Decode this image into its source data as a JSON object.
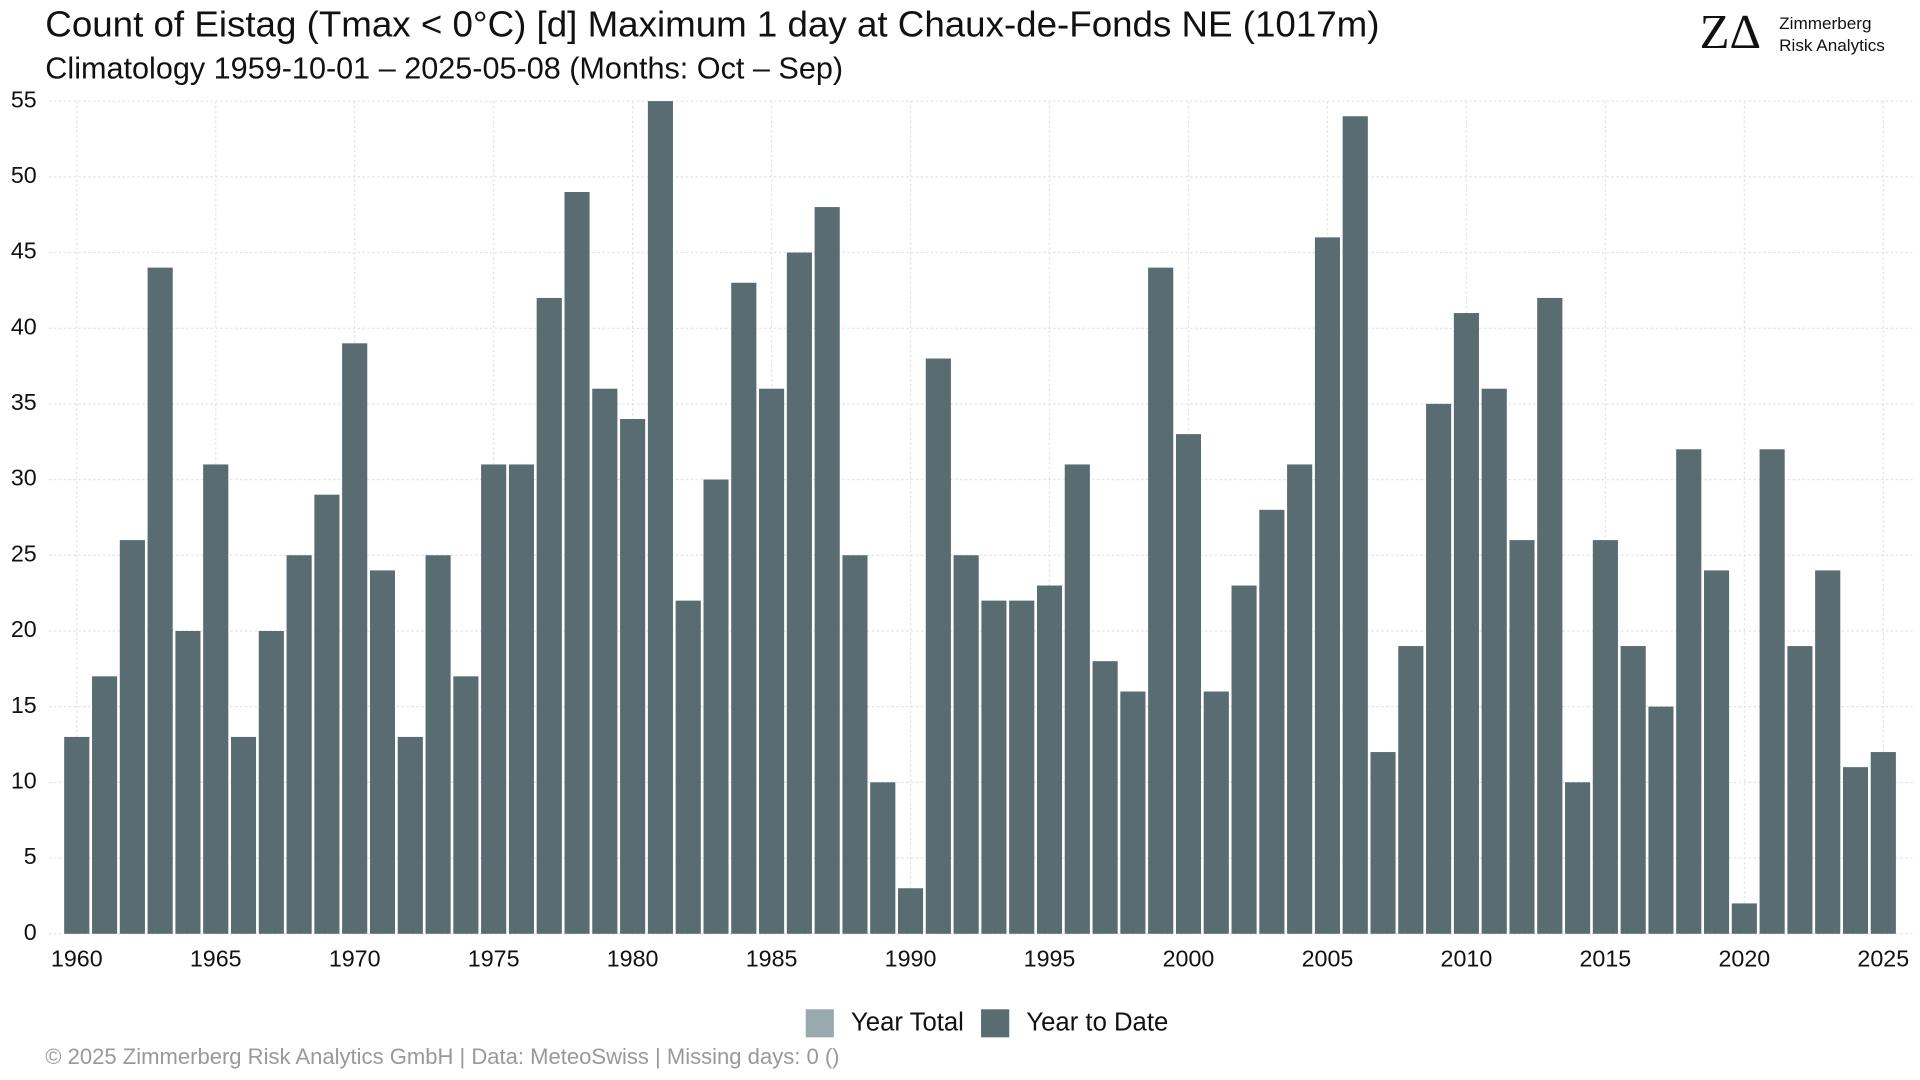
{
  "chart_data": {
    "type": "bar",
    "title": "Count of Eistag (Tmax < 0°C) [d] Maximum 1 day at Chaux-de-Fonds  NE (1017m)",
    "subtitle": "Climatology 1959-10-01 – 2025-05-08 (Months: Oct – Sep)",
    "footer": "©  2025 Zimmerberg Risk Analytics GmbH | Data: MeteoSwiss | Missing days: 0 ()",
    "logo": {
      "mark": "ZΔ",
      "line1": "Zimmerberg",
      "line2": "Risk Analytics"
    },
    "x": [
      1960,
      1961,
      1962,
      1963,
      1964,
      1965,
      1966,
      1967,
      1968,
      1969,
      1970,
      1971,
      1972,
      1973,
      1974,
      1975,
      1976,
      1977,
      1978,
      1979,
      1980,
      1981,
      1982,
      1983,
      1984,
      1985,
      1986,
      1987,
      1988,
      1989,
      1990,
      1991,
      1992,
      1993,
      1994,
      1995,
      1996,
      1997,
      1998,
      1999,
      2000,
      2001,
      2002,
      2003,
      2004,
      2005,
      2006,
      2007,
      2008,
      2009,
      2010,
      2011,
      2012,
      2013,
      2014,
      2015,
      2016,
      2017,
      2018,
      2019,
      2020,
      2021,
      2022,
      2023,
      2024,
      2025
    ],
    "series": [
      {
        "name": "Year Total",
        "color": "#9aa9ae",
        "values": [
          13,
          17,
          26,
          44,
          20,
          31,
          13,
          20,
          25,
          29,
          39,
          24,
          13,
          25,
          17,
          31,
          31,
          42,
          49,
          36,
          34,
          55,
          22,
          30,
          43,
          36,
          45,
          48,
          25,
          10,
          3,
          38,
          25,
          22,
          22,
          23,
          31,
          18,
          16,
          44,
          33,
          16,
          23,
          28,
          31,
          46,
          54,
          12,
          19,
          35,
          41,
          36,
          26,
          42,
          10,
          26,
          19,
          15,
          32,
          24,
          2,
          32,
          19,
          24,
          11,
          12
        ]
      },
      {
        "name": "Year to Date",
        "color": "#586c72",
        "values": [
          13,
          17,
          26,
          44,
          20,
          31,
          13,
          20,
          25,
          29,
          39,
          24,
          13,
          25,
          17,
          31,
          31,
          42,
          49,
          36,
          34,
          55,
          22,
          30,
          43,
          36,
          45,
          48,
          25,
          10,
          3,
          38,
          25,
          22,
          22,
          23,
          31,
          18,
          16,
          44,
          33,
          16,
          23,
          28,
          31,
          46,
          54,
          12,
          19,
          35,
          41,
          36,
          26,
          42,
          10,
          26,
          19,
          15,
          32,
          24,
          2,
          32,
          19,
          24,
          11,
          12
        ]
      }
    ],
    "xlim": [
      1959.0,
      2026.1
    ],
    "xticks": [
      1960,
      1965,
      1970,
      1975,
      1980,
      1985,
      1990,
      1995,
      2000,
      2005,
      2010,
      2015,
      2020,
      2025
    ],
    "ylim": [
      0,
      55
    ],
    "yticks": [
      0,
      5,
      10,
      15,
      20,
      25,
      30,
      35,
      40,
      45,
      50,
      55
    ],
    "grid": true,
    "legend": "bottom"
  }
}
